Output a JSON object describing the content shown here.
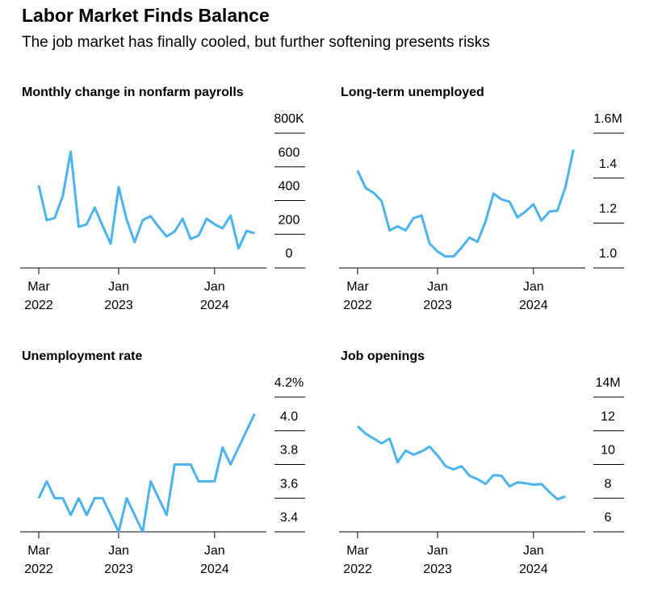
{
  "title": "Labor Market Finds Balance",
  "subtitle": "The job market has finally cooled, but further softening presents risks",
  "chart_data": [
    {
      "type": "line",
      "title": "Monthly change in nonfarm payrolls",
      "color": "#4cb2ec",
      "categories": [
        "Mar\n2022",
        null,
        null,
        null,
        null,
        null,
        null,
        null,
        null,
        null,
        "Jan\n2023",
        null,
        null,
        null,
        null,
        null,
        null,
        null,
        null,
        null,
        null,
        null,
        "Jan\n2024",
        null,
        null,
        null,
        null,
        null
      ],
      "values": [
        490,
        283,
        297,
        426,
        690,
        244,
        259,
        359,
        249,
        144,
        479,
        287,
        153,
        283,
        307,
        244,
        187,
        216,
        292,
        172,
        192,
        292,
        259,
        235,
        311,
        115,
        220,
        206
      ],
      "ylim": [
        0,
        800
      ],
      "yticks": [
        0,
        200,
        400,
        600,
        {
          "value": 800,
          "label": "800K"
        }
      ]
    },
    {
      "type": "line",
      "title": "Long-term unemployed",
      "color": "#4cb2ec",
      "categories": [
        "Mar\n2022",
        null,
        null,
        null,
        null,
        null,
        null,
        null,
        null,
        null,
        "Jan\n2023",
        null,
        null,
        null,
        null,
        null,
        null,
        null,
        null,
        null,
        null,
        null,
        "Jan\n2024",
        null,
        null,
        null,
        null,
        null
      ],
      "values": [
        1.433,
        1.356,
        1.335,
        1.298,
        1.167,
        1.185,
        1.167,
        1.222,
        1.233,
        1.109,
        1.073,
        1.051,
        1.051,
        1.091,
        1.135,
        1.116,
        1.207,
        1.331,
        1.305,
        1.295,
        1.225,
        1.251,
        1.284,
        1.211,
        1.251,
        1.255,
        1.36,
        1.527
      ],
      "ylim": [
        1.0,
        1.6
      ],
      "yticks": [
        {
          "value": 1.0,
          "label": "1.0"
        },
        1.2,
        1.4,
        {
          "value": 1.6,
          "label": "1.6M"
        }
      ]
    },
    {
      "type": "line",
      "title": "Unemployment rate",
      "color": "#4cb2ec",
      "categories": [
        "Mar\n2022",
        null,
        null,
        null,
        null,
        null,
        null,
        null,
        null,
        null,
        "Jan\n2023",
        null,
        null,
        null,
        null,
        null,
        null,
        null,
        null,
        null,
        null,
        null,
        "Jan\n2024",
        null,
        null,
        null,
        null,
        null
      ],
      "values": [
        3.6,
        3.7,
        3.6,
        3.6,
        3.5,
        3.6,
        3.5,
        3.6,
        3.6,
        3.5,
        3.4,
        3.6,
        3.5,
        3.4,
        3.7,
        3.6,
        3.5,
        3.8,
        3.8,
        3.8,
        3.7,
        3.7,
        3.7,
        3.9,
        3.8,
        3.9,
        4.0,
        4.1
      ],
      "ylim": [
        3.4,
        4.2
      ],
      "yticks": [
        3.4,
        3.6,
        3.8,
        {
          "value": 4.0,
          "label": "4.0"
        },
        {
          "value": 4.2,
          "label": "4.2%"
        }
      ]
    },
    {
      "type": "line",
      "title": "Job openings",
      "color": "#4cb2ec",
      "categories": [
        "Mar\n2022",
        null,
        null,
        null,
        null,
        null,
        null,
        null,
        null,
        null,
        "Jan\n2023",
        null,
        null,
        null,
        null,
        null,
        null,
        null,
        null,
        null,
        null,
        null,
        "Jan\n2024",
        null,
        null,
        null,
        null
      ],
      "values": [
        12.27,
        11.83,
        11.54,
        11.25,
        11.54,
        10.14,
        10.82,
        10.58,
        10.77,
        11.06,
        10.53,
        9.9,
        9.71,
        9.9,
        9.33,
        9.13,
        8.84,
        9.37,
        9.33,
        8.7,
        8.94,
        8.89,
        8.8,
        8.84,
        8.36,
        7.93,
        8.1
      ],
      "ylim": [
        6,
        14
      ],
      "yticks": [
        6,
        8,
        10,
        12,
        {
          "value": 14,
          "label": "14M"
        }
      ]
    }
  ]
}
